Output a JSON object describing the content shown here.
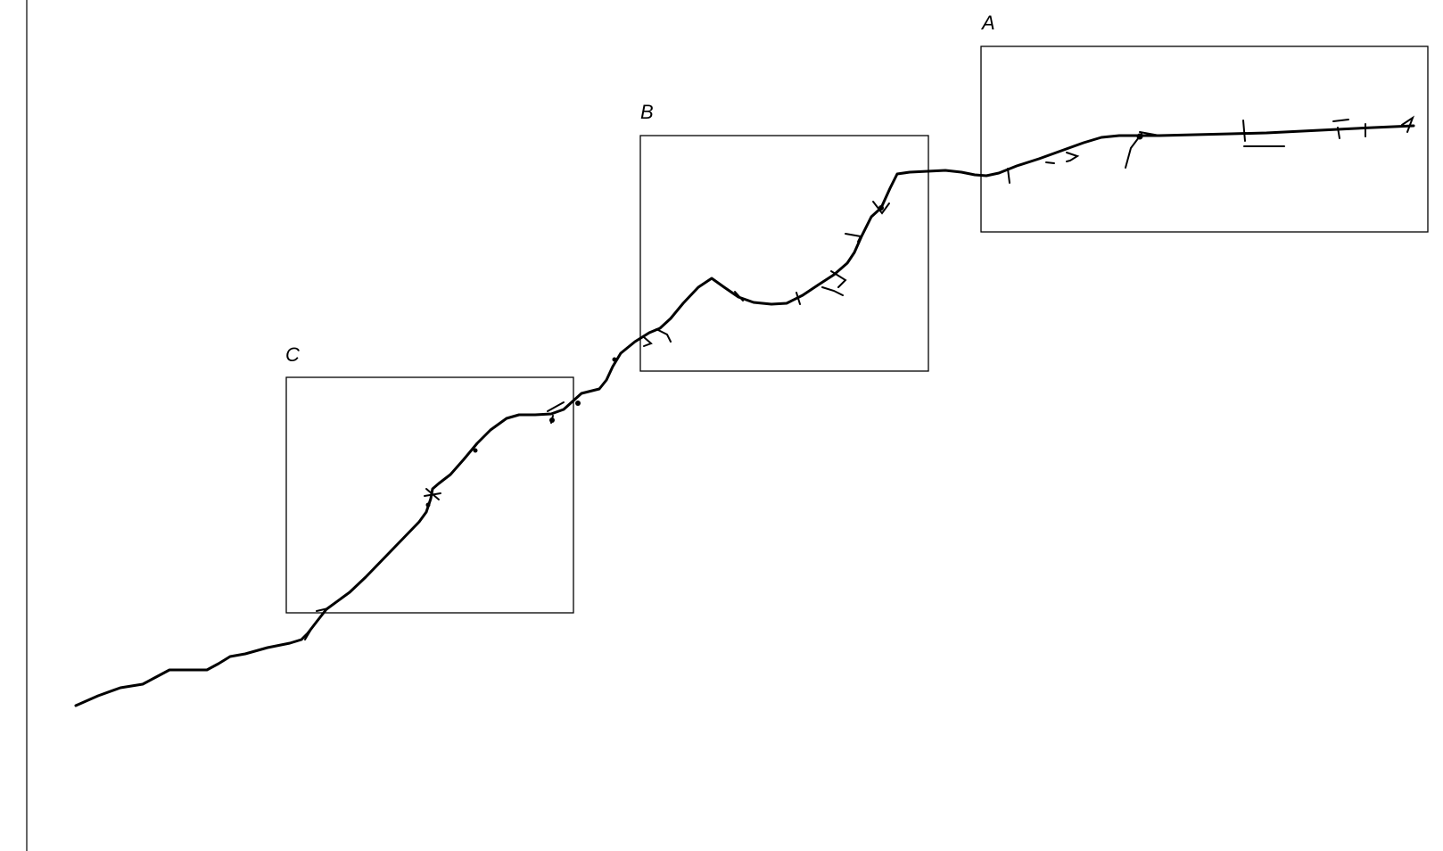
{
  "figure": {
    "regions": [
      {
        "id": "A",
        "label": "A"
      },
      {
        "id": "B",
        "label": "B"
      },
      {
        "id": "C",
        "label": "C"
      }
    ],
    "line_color": "#000000"
  }
}
